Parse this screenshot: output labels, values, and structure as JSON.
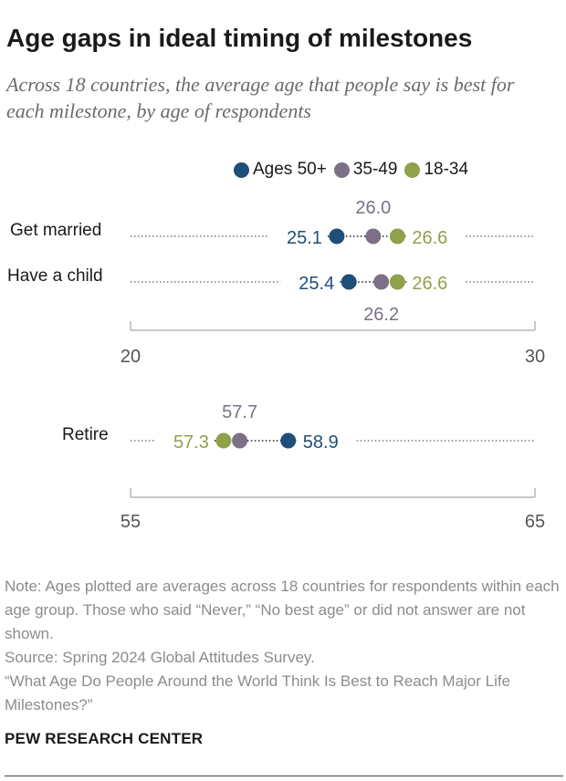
{
  "title": "Age gaps in ideal timing of milestones",
  "subtitle": "Across 18 countries, the average age that people say is best for each milestone, by age of respondents",
  "legend": [
    {
      "label": "Ages 50+",
      "color": "#1f4e79"
    },
    {
      "label": "35-49",
      "color": "#7b7086"
    },
    {
      "label": "18-34",
      "color": "#8fa14a"
    }
  ],
  "chart_data": [
    {
      "type": "dot",
      "axis": {
        "min": 20,
        "max": 30,
        "tick_labels": [
          "20",
          "30"
        ]
      },
      "categories": [
        "Get married",
        "Have a child"
      ],
      "series": [
        {
          "name": "Ages 50+",
          "values": [
            25.1,
            25.4
          ]
        },
        {
          "name": "35-49",
          "values": [
            26.0,
            26.2
          ]
        },
        {
          "name": "18-34",
          "values": [
            26.6,
            26.6
          ]
        }
      ],
      "data_labels": [
        [
          "25.1",
          "26.0",
          "26.6"
        ],
        [
          "25.4",
          "26.2",
          "26.6"
        ]
      ]
    },
    {
      "type": "dot",
      "axis": {
        "min": 55,
        "max": 65,
        "tick_labels": [
          "55",
          "65"
        ]
      },
      "categories": [
        "Retire"
      ],
      "series": [
        {
          "name": "Ages 50+",
          "values": [
            58.9
          ]
        },
        {
          "name": "35-49",
          "values": [
            57.7
          ]
        },
        {
          "name": "18-34",
          "values": [
            57.3
          ]
        }
      ],
      "data_labels": [
        [
          "58.9",
          "57.7",
          "57.3"
        ]
      ]
    }
  ],
  "notes": {
    "note": "Note: Ages plotted are averages across 18 countries for respondents within each age group. Those who said “Never,” “No best age” or did not answer are not shown.",
    "source": "Source: Spring 2024 Global Attitudes Survey.",
    "report": "“What Age Do People Around the World Think Is Best to Reach Major Life Milestones?”"
  },
  "brand": "PEW RESEARCH CENTER"
}
